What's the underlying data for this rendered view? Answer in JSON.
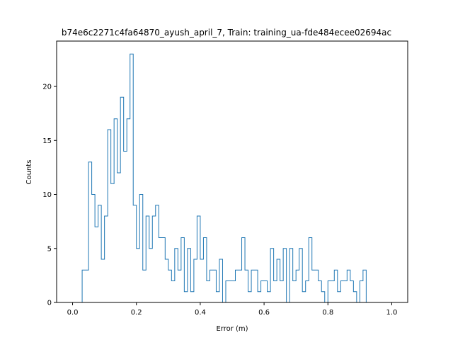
{
  "chart_data": {
    "type": "histogram",
    "title": "b74e6c2271c4fa64870_ayush_april_7, Train: training_ua-fde484ecee02694ac",
    "xlabel": "Error (m)",
    "ylabel": "Counts",
    "xlim": [
      -0.05,
      1.05
    ],
    "ylim": [
      0,
      24.2
    ],
    "xticks": [
      "0.0",
      "0.2",
      "0.4",
      "0.6",
      "0.8",
      "1.0"
    ],
    "xtick_values": [
      0.0,
      0.2,
      0.4,
      0.6,
      0.8,
      1.0
    ],
    "yticks": [
      "0",
      "5",
      "10",
      "15",
      "20"
    ],
    "ytick_values": [
      0,
      5,
      10,
      15,
      20
    ],
    "grid": false,
    "legend": "none",
    "color": "#1f77b4",
    "bin_start": 0.03,
    "bin_width": 0.01,
    "counts": [
      3,
      3,
      13,
      10,
      7,
      9,
      4,
      8,
      16,
      11,
      17,
      12,
      19,
      14,
      17,
      23,
      9,
      5,
      10,
      3,
      8,
      5,
      8,
      9,
      6,
      6,
      4,
      3,
      2,
      5,
      3,
      6,
      1,
      5,
      1,
      4,
      8,
      4,
      6,
      2,
      3,
      3,
      1,
      4,
      0,
      2,
      2,
      2,
      3,
      3,
      6,
      3,
      1,
      3,
      3,
      1,
      2,
      2,
      1,
      5,
      2,
      4,
      2,
      5,
      0,
      5,
      2,
      3,
      5,
      1,
      2,
      6,
      3,
      3,
      2,
      1,
      0,
      2,
      2,
      3,
      1,
      2,
      2,
      3,
      2,
      1,
      0,
      2,
      3
    ],
    "counts_note": ""
  }
}
